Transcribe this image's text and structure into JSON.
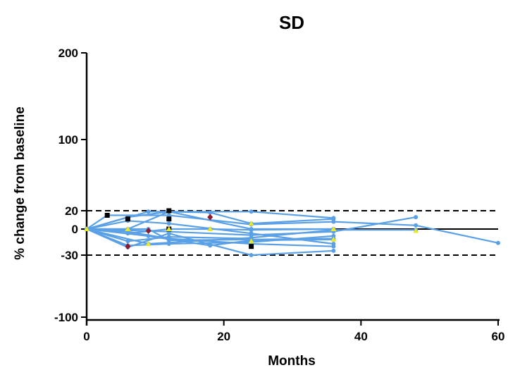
{
  "chart_data": {
    "type": "line",
    "title": "SD",
    "xlabel": "Months",
    "ylabel": "% change from baseline",
    "xlim": [
      0,
      60
    ],
    "ylim": [
      -110,
      200
    ],
    "x_ticks": [
      0,
      20,
      40,
      60
    ],
    "y_ticks": [
      -100,
      -30,
      0,
      20,
      100,
      200
    ],
    "reference_lines": [
      {
        "y": 20,
        "style": "dashed"
      },
      {
        "y": -30,
        "style": "dashed"
      },
      {
        "y": 0,
        "style": "solid",
        "x_range": [
          36,
          60
        ]
      }
    ],
    "line_color": "#5aa0e6",
    "series": [
      {
        "points": [
          [
            0,
            0
          ],
          [
            6,
            -21
          ],
          [
            12,
            -5
          ],
          [
            24,
            -30
          ],
          [
            36,
            -25
          ]
        ]
      },
      {
        "points": [
          [
            0,
            0
          ],
          [
            6,
            13
          ],
          [
            12,
            19
          ],
          [
            24,
            19
          ],
          [
            36,
            12
          ]
        ]
      },
      {
        "points": [
          [
            0,
            0
          ],
          [
            6,
            9
          ],
          [
            12,
            6
          ],
          [
            24,
            -5
          ],
          [
            36,
            -17
          ]
        ]
      },
      {
        "points": [
          [
            0,
            0
          ],
          [
            6,
            -3
          ],
          [
            12,
            -11
          ],
          [
            24,
            -17
          ],
          [
            36,
            -20
          ]
        ]
      },
      {
        "points": [
          [
            0,
            0
          ],
          [
            9,
            -8
          ],
          [
            18,
            -19
          ],
          [
            24,
            -13
          ],
          [
            36,
            -12
          ]
        ]
      },
      {
        "points": [
          [
            0,
            0
          ],
          [
            6,
            0
          ],
          [
            12,
            19
          ],
          [
            18,
            18
          ],
          [
            24,
            6
          ],
          [
            36,
            11
          ]
        ]
      },
      {
        "points": [
          [
            0,
            0
          ],
          [
            3,
            15
          ],
          [
            12,
            15
          ],
          [
            24,
            5
          ],
          [
            36,
            8
          ],
          [
            48,
            4
          ],
          [
            60,
            -16
          ]
        ]
      },
      {
        "points": [
          [
            0,
            0
          ],
          [
            6,
            -19
          ],
          [
            12,
            -17
          ],
          [
            24,
            -15
          ],
          [
            36,
            -8
          ]
        ]
      },
      {
        "points": [
          [
            0,
            0
          ],
          [
            12,
            -3
          ],
          [
            24,
            -7
          ],
          [
            36,
            -3
          ],
          [
            48,
            13
          ]
        ]
      },
      {
        "points": [
          [
            0,
            0
          ],
          [
            9,
            -17
          ],
          [
            24,
            -10
          ],
          [
            36,
            -1
          ],
          [
            48,
            -1
          ]
        ]
      },
      {
        "points": [
          [
            0,
            0
          ],
          [
            6,
            -5
          ],
          [
            12,
            0
          ],
          [
            18,
            0
          ],
          [
            24,
            -1
          ],
          [
            36,
            0
          ]
        ]
      },
      {
        "points": [
          [
            0,
            0
          ],
          [
            9,
            0
          ],
          [
            12,
            -13
          ],
          [
            24,
            -12
          ],
          [
            36,
            -11
          ]
        ]
      },
      {
        "points": [
          [
            0,
            0
          ],
          [
            9,
            19
          ],
          [
            12,
            19
          ],
          [
            24,
            0
          ],
          [
            36,
            0
          ]
        ]
      },
      {
        "points": [
          [
            0,
            0
          ],
          [
            6,
            -14
          ],
          [
            12,
            -9
          ],
          [
            24,
            -11
          ]
        ]
      }
    ],
    "markers": [
      {
        "shape": "square",
        "color": "#000000",
        "points": [
          [
            3,
            15
          ],
          [
            6,
            11
          ],
          [
            12,
            11
          ],
          [
            12,
            0
          ],
          [
            12,
            20
          ],
          [
            24,
            -20
          ]
        ]
      },
      {
        "shape": "diamond",
        "color": "#8b1a2e",
        "points": [
          [
            6,
            -20
          ],
          [
            9,
            -2
          ],
          [
            18,
            13
          ]
        ]
      },
      {
        "shape": "triangle",
        "color": "#e8e82a",
        "points": [
          [
            0,
            0
          ],
          [
            6,
            0
          ],
          [
            9,
            -17
          ],
          [
            12,
            0
          ],
          [
            18,
            0
          ],
          [
            24,
            -14
          ],
          [
            24,
            6
          ],
          [
            36,
            0
          ],
          [
            36,
            -12
          ],
          [
            48,
            -2
          ]
        ]
      }
    ]
  }
}
